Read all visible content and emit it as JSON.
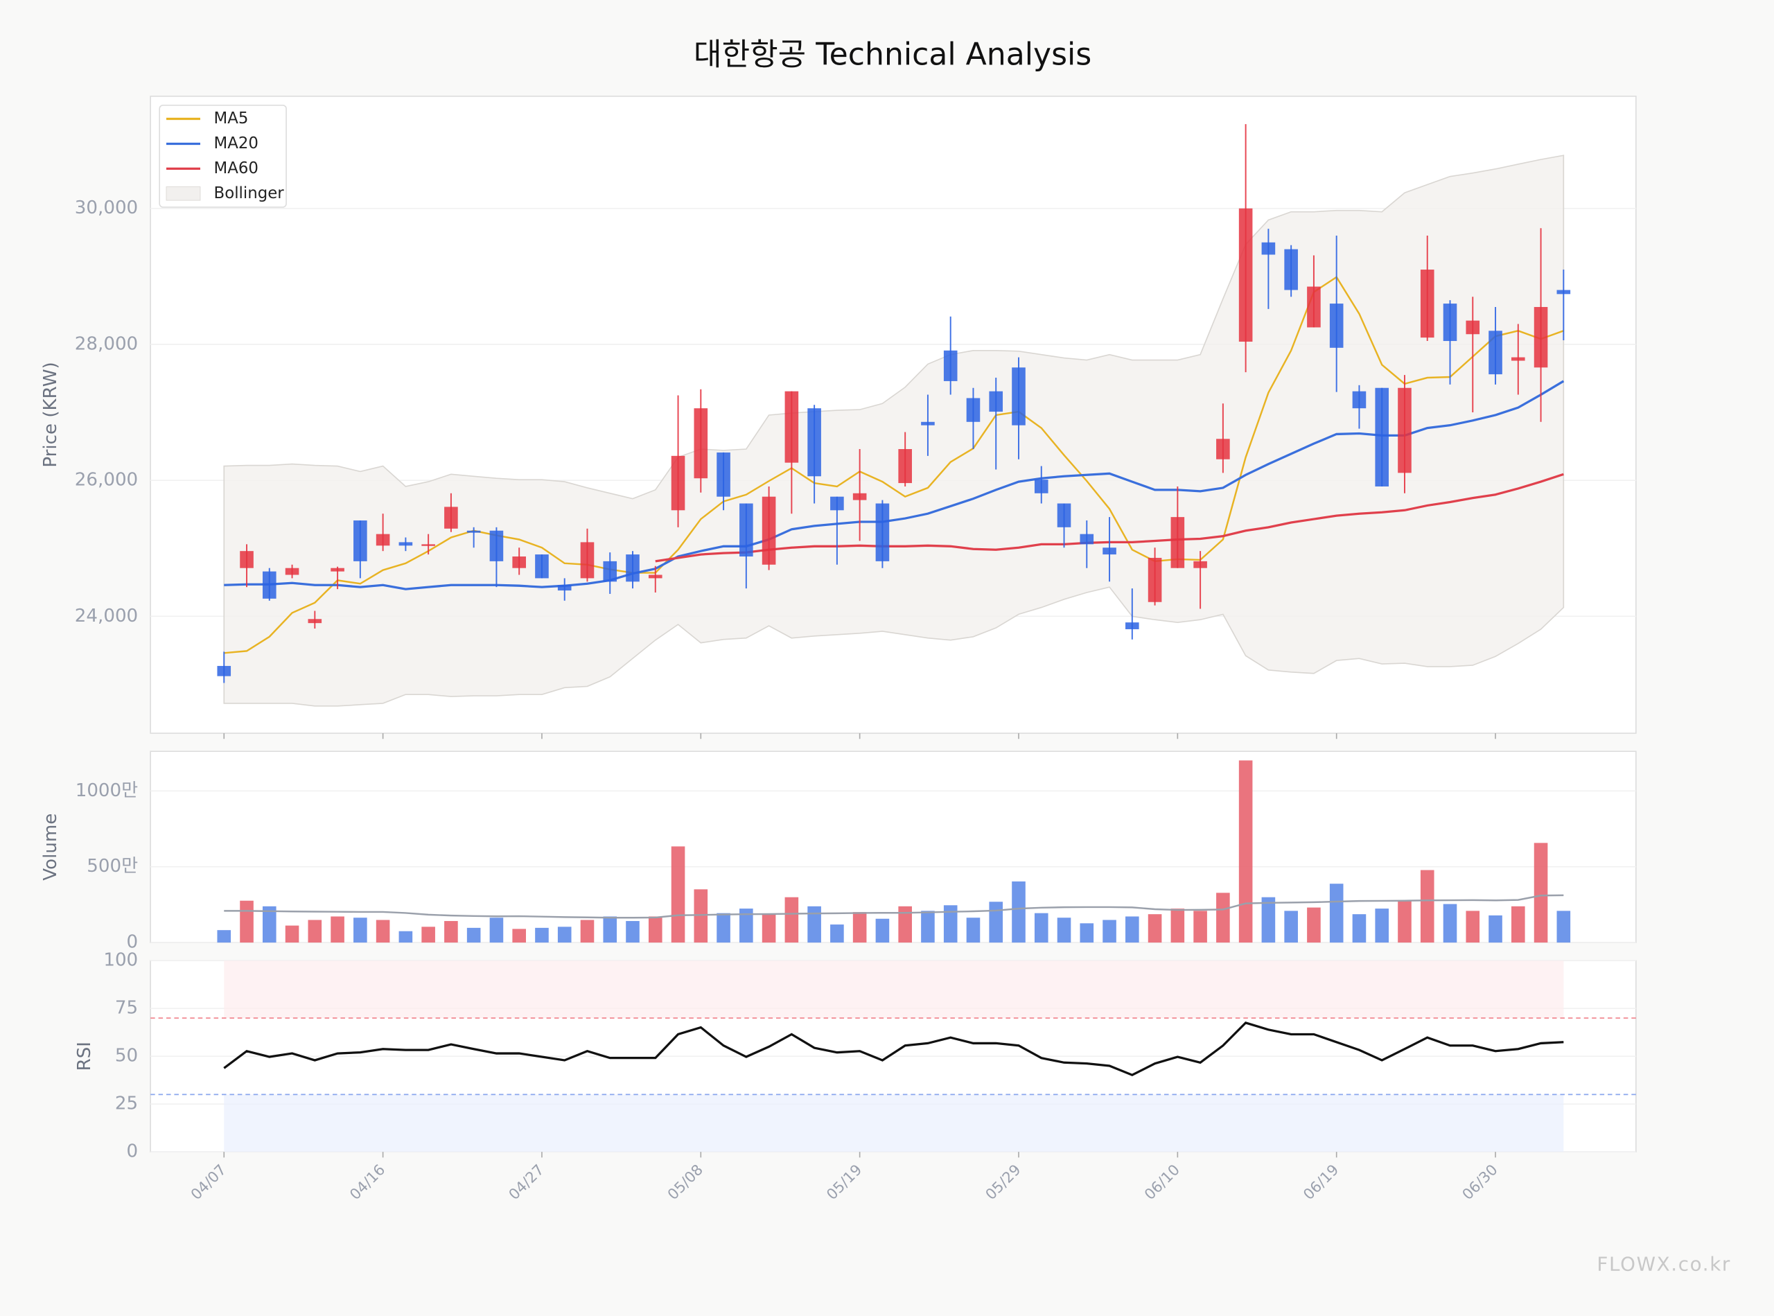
{
  "chart_data": [
    {
      "type": "candlestick",
      "title": "대한항공 Technical Analysis",
      "ylabel": "Price (KRW)",
      "watermark": "FLOWX.co.kr",
      "categories": [
        "04/07",
        null,
        null,
        null,
        null,
        null,
        null,
        "04/16",
        null,
        null,
        null,
        null,
        null,
        null,
        "04/27",
        null,
        null,
        null,
        null,
        null,
        null,
        "05/08",
        null,
        null,
        null,
        null,
        null,
        null,
        "05/19",
        null,
        null,
        null,
        null,
        null,
        null,
        "05/29",
        null,
        null,
        null,
        null,
        null,
        null,
        "06/10",
        null,
        null,
        null,
        null,
        null,
        null,
        "06/19",
        null,
        null,
        null,
        null,
        null,
        null,
        "06/30",
        null,
        null,
        null
      ],
      "open": [
        23270,
        24710,
        24660,
        24610,
        23900,
        24660,
        25410,
        25040,
        25090,
        25040,
        25290,
        25260,
        25260,
        24710,
        24910,
        24460,
        24560,
        24810,
        24910,
        24560,
        25560,
        26030,
        26410,
        25660,
        24760,
        26260,
        27060,
        25760,
        25710,
        25660,
        25960,
        26860,
        27910,
        27210,
        27310,
        27660,
        26010,
        25660,
        25210,
        25010,
        23910,
        24210,
        24710,
        24710,
        26310,
        28040,
        29500,
        29400,
        28250,
        28600,
        27310,
        27360,
        26110,
        28100,
        28600,
        28150,
        28200,
        27760,
        27660,
        28800
      ],
      "high": [
        23480,
        25060,
        24710,
        24760,
        24080,
        24730,
        25410,
        25510,
        25160,
        25210,
        25810,
        25310,
        25310,
        25010,
        24910,
        24560,
        25290,
        24940,
        24960,
        24740,
        27250,
        27340,
        26410,
        25660,
        25910,
        27310,
        27110,
        25760,
        26460,
        25710,
        26710,
        27260,
        28410,
        27360,
        27510,
        27810,
        26210,
        25660,
        25410,
        25460,
        24410,
        25010,
        25910,
        24960,
        27130,
        31240,
        29700,
        29460,
        29310,
        29600,
        27400,
        27360,
        27550,
        29600,
        28650,
        28700,
        28550,
        28300,
        29710,
        29100
      ],
      "low": [
        23020,
        24430,
        24230,
        24560,
        23820,
        24400,
        24560,
        24960,
        24960,
        24910,
        25240,
        25010,
        24430,
        24610,
        24560,
        24230,
        24510,
        24330,
        24410,
        24350,
        25310,
        25820,
        25560,
        24410,
        24680,
        25510,
        25660,
        24760,
        25110,
        24710,
        25910,
        26360,
        27260,
        26460,
        26160,
        26310,
        25660,
        25010,
        24710,
        24510,
        23660,
        24160,
        24710,
        24110,
        26110,
        27590,
        28520,
        28700,
        28250,
        27300,
        26760,
        25910,
        25810,
        28050,
        27410,
        27000,
        27410,
        27260,
        26860,
        28060
      ],
      "close": [
        23120,
        24960,
        24260,
        24710,
        23960,
        24710,
        24810,
        25210,
        25040,
        25060,
        25610,
        25230,
        24810,
        24880,
        24560,
        24380,
        25090,
        24510,
        24510,
        24610,
        26360,
        27060,
        25760,
        24880,
        25760,
        27310,
        26060,
        25560,
        25810,
        24810,
        26460,
        26810,
        27460,
        26860,
        27010,
        26810,
        25810,
        25310,
        25060,
        24910,
        23810,
        24860,
        25460,
        24810,
        26610,
        30000,
        29320,
        28800,
        28850,
        27950,
        27060,
        25910,
        27360,
        29100,
        28050,
        28350,
        27560,
        27810,
        28550,
        28740
      ],
      "up_color": "#e5323f",
      "down_color": "#2b63e3",
      "series": [
        {
          "name": "MA5",
          "color": "#e8b323",
          "values": [
            23460,
            23490,
            23700,
            24050,
            24200,
            24530,
            24480,
            24680,
            24780,
            24960,
            25160,
            25260,
            25190,
            25130,
            25010,
            24780,
            24760,
            24690,
            24640,
            24640,
            24980,
            25430,
            25690,
            25790,
            25990,
            26180,
            25960,
            25910,
            26130,
            25980,
            25760,
            25890,
            26270,
            26470,
            26960,
            27010,
            26770,
            26370,
            25990,
            25580,
            24980,
            24810,
            24840,
            24830,
            25130,
            26340,
            27290,
            27910,
            28770,
            28990,
            28450,
            27700,
            27420,
            27510,
            27520,
            27820,
            28120,
            28200,
            28080,
            28200
          ]
        },
        {
          "name": "MA20",
          "color": "#3a6fdc",
          "values": [
            24460,
            24470,
            24470,
            24490,
            24460,
            24460,
            24430,
            24460,
            24400,
            24430,
            24460,
            24460,
            24460,
            24450,
            24430,
            24450,
            24480,
            24530,
            24630,
            24700,
            24880,
            24960,
            25030,
            25030,
            25130,
            25280,
            25330,
            25360,
            25390,
            25390,
            25440,
            25510,
            25620,
            25730,
            25860,
            25980,
            26030,
            26060,
            26080,
            26100,
            25980,
            25860,
            25860,
            25840,
            25890,
            26080,
            26240,
            26390,
            26540,
            26680,
            26690,
            26660,
            26660,
            26770,
            26810,
            26880,
            26960,
            27070,
            27260,
            27460
          ]
        },
        {
          "name": "MA60",
          "color": "#e0404c",
          "values": [
            null,
            null,
            null,
            null,
            null,
            null,
            null,
            null,
            null,
            null,
            null,
            null,
            null,
            null,
            null,
            null,
            null,
            null,
            null,
            24810,
            24860,
            24910,
            24930,
            24940,
            24980,
            25010,
            25030,
            25030,
            25040,
            25030,
            25030,
            25040,
            25030,
            24990,
            24980,
            25010,
            25060,
            25060,
            25080,
            25090,
            25090,
            25110,
            25130,
            25140,
            25180,
            25260,
            25310,
            25380,
            25430,
            25480,
            25510,
            25530,
            25560,
            25630,
            25680,
            25740,
            25790,
            25880,
            25980,
            26090
          ]
        }
      ],
      "bollinger": {
        "name": "Bollinger",
        "color": "#d9d6d2",
        "upper": [
          26210,
          26220,
          26220,
          26240,
          26220,
          26210,
          26130,
          26210,
          25910,
          25980,
          26090,
          26060,
          26030,
          26010,
          26010,
          25980,
          25890,
          25810,
          25730,
          25860,
          26340,
          26460,
          26440,
          26460,
          26960,
          26990,
          27010,
          27030,
          27040,
          27130,
          27370,
          27710,
          27850,
          27910,
          27910,
          27900,
          27850,
          27800,
          27770,
          27850,
          27770,
          27770,
          27770,
          27850,
          28670,
          29470,
          29830,
          29950,
          29950,
          29970,
          29970,
          29950,
          30230,
          30350,
          30470,
          30520,
          30580,
          30650,
          30720,
          30780
        ],
        "lower": [
          22720,
          22720,
          22720,
          22720,
          22680,
          22680,
          22700,
          22720,
          22850,
          22850,
          22820,
          22830,
          22830,
          22850,
          22850,
          22950,
          22970,
          23110,
          23380,
          23650,
          23880,
          23610,
          23660,
          23680,
          23860,
          23680,
          23710,
          23730,
          23750,
          23780,
          23730,
          23680,
          23650,
          23700,
          23830,
          24030,
          24130,
          24250,
          24350,
          24430,
          24000,
          23950,
          23910,
          23950,
          24030,
          23420,
          23210,
          23180,
          23160,
          23350,
          23380,
          23300,
          23310,
          23260,
          23260,
          23280,
          23410,
          23600,
          23810,
          24130
        ]
      },
      "ylim": [
        22280,
        31650
      ],
      "yticks": [
        {
          "value": 24000,
          "label": "24,000"
        },
        {
          "value": 26000,
          "label": "26,000"
        },
        {
          "value": 28000,
          "label": "28,000"
        },
        {
          "value": 30000,
          "label": "30,000"
        }
      ],
      "grid": true,
      "legend": "upper left"
    },
    {
      "type": "bar",
      "ylabel": "Volume",
      "values": [
        820000,
        2760000,
        2390000,
        1120000,
        1490000,
        1720000,
        1640000,
        1490000,
        750000,
        1040000,
        1420000,
        970000,
        1640000,
        900000,
        970000,
        1040000,
        1490000,
        1720000,
        1420000,
        1720000,
        6340000,
        3510000,
        1940000,
        2240000,
        1870000,
        2990000,
        2390000,
        1190000,
        2010000,
        1570000,
        2390000,
        2090000,
        2460000,
        1640000,
        2690000,
        4030000,
        1940000,
        1640000,
        1270000,
        1490000,
        1720000,
        1870000,
        2240000,
        2090000,
        3280000,
        12010000,
        2990000,
        2090000,
        2310000,
        3880000,
        1870000,
        2240000,
        2760000,
        4780000,
        2540000,
        2090000,
        1790000,
        2390000,
        6570000,
        2090000
      ],
      "ma_values": [
        2090000,
        2090000,
        2070000,
        2050000,
        2040000,
        2030000,
        2020000,
        2020000,
        1950000,
        1840000,
        1780000,
        1750000,
        1730000,
        1740000,
        1710000,
        1680000,
        1660000,
        1640000,
        1640000,
        1650000,
        1800000,
        1820000,
        1850000,
        1870000,
        1880000,
        1900000,
        1920000,
        1930000,
        1950000,
        1960000,
        1960000,
        1990000,
        2030000,
        2060000,
        2110000,
        2240000,
        2300000,
        2330000,
        2340000,
        2340000,
        2320000,
        2200000,
        2150000,
        2160000,
        2180000,
        2580000,
        2620000,
        2640000,
        2660000,
        2700000,
        2740000,
        2750000,
        2760000,
        2780000,
        2790000,
        2800000,
        2780000,
        2810000,
        3100000,
        3120000
      ],
      "ma_color": "#9aa0ab",
      "up_color": "#e86570",
      "down_color": "#5f8ce8",
      "ylim": [
        0,
        12610000
      ],
      "yticks": [
        0,
        {
          "value": 5000000,
          "label": "500만"
        },
        {
          "value": 10000000,
          "label": "1000만"
        }
      ],
      "grid": true
    },
    {
      "type": "line",
      "ylabel": "RSI",
      "color": "#111111",
      "values": [
        43.8,
        52.7,
        49.7,
        51.5,
        47.9,
        51.5,
        52,
        53.8,
        53.3,
        53.3,
        56.2,
        53.8,
        51.5,
        51.5,
        49.7,
        47.9,
        52.7,
        49.1,
        49.1,
        49.1,
        61.5,
        65.1,
        55.6,
        49.7,
        55,
        61.5,
        54.4,
        52,
        52.7,
        47.9,
        55.6,
        56.8,
        59.8,
        56.8,
        56.8,
        55.6,
        49.1,
        46.7,
        46.2,
        45,
        40.2,
        46.2,
        49.7,
        46.7,
        55.6,
        67.5,
        63.9,
        61.5,
        61.5,
        57.4,
        53.3,
        47.9,
        53.8,
        59.8,
        55.6,
        55.6,
        52.7,
        53.8,
        56.8,
        57.4
      ],
      "overbought": 70,
      "oversold": 30,
      "overbought_color": "#f0808a",
      "oversold_color": "#8aa6ee",
      "ylim": [
        0,
        100
      ],
      "yticks": [
        0,
        25,
        50,
        75,
        100
      ],
      "grid": true
    }
  ]
}
